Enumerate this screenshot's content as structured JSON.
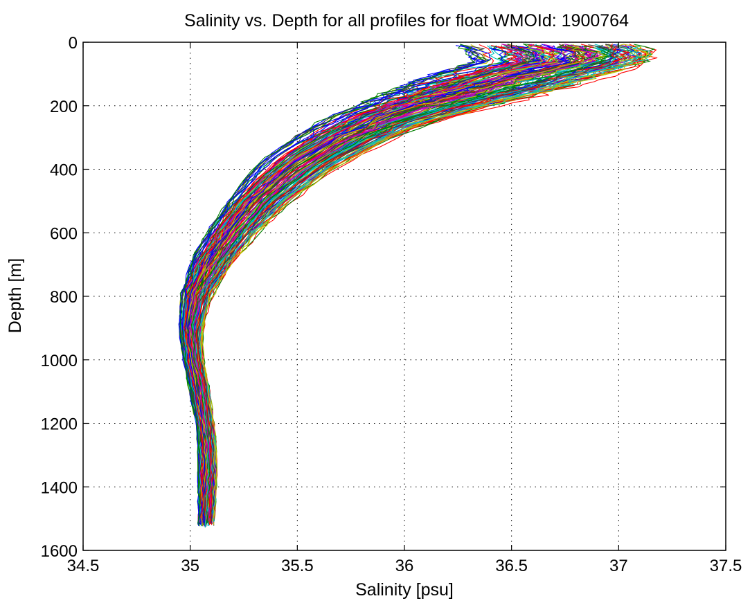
{
  "chart_data": {
    "type": "line",
    "title": "Salinity vs. Depth for all profiles for float WMOId: 1900764",
    "xlabel": "Salinity [psu]",
    "ylabel": "Depth [m]",
    "xlim": [
      34.5,
      37.5
    ],
    "ylim": [
      0,
      1600
    ],
    "y_reversed": true,
    "grid": true,
    "grid_style": "dotted",
    "xticks": [
      "34.5",
      "35",
      "35.5",
      "36",
      "36.5",
      "37",
      "37.5"
    ],
    "yticks": [
      "0",
      "200",
      "400",
      "600",
      "800",
      "1000",
      "1200",
      "1400",
      "1600"
    ],
    "series_colors": [
      "#0000ff",
      "#008000",
      "#ff0000",
      "#00bfbf",
      "#bf00bf",
      "#bfbf00",
      "#404040"
    ],
    "profiles_representative": {
      "depth": [
        5,
        30,
        60,
        100,
        150,
        200,
        250,
        300,
        350,
        400,
        500,
        600,
        700,
        800,
        900,
        1000,
        1100,
        1200,
        1300,
        1400,
        1530
      ],
      "salinity_p10": [
        36.25,
        36.3,
        36.35,
        36.15,
        35.95,
        35.8,
        35.62,
        35.5,
        35.38,
        35.3,
        35.18,
        35.08,
        35.0,
        34.96,
        34.95,
        34.97,
        35.0,
        35.03,
        35.04,
        35.04,
        35.04
      ],
      "salinity_median": [
        36.75,
        36.85,
        36.85,
        36.6,
        36.35,
        36.1,
        35.9,
        35.75,
        35.62,
        35.5,
        35.32,
        35.2,
        35.1,
        35.03,
        35.0,
        35.02,
        35.05,
        35.07,
        35.08,
        35.08,
        35.07
      ],
      "salinity_p90": [
        37.1,
        37.2,
        37.15,
        37.0,
        36.75,
        36.45,
        36.15,
        35.98,
        35.82,
        35.68,
        35.48,
        35.32,
        35.2,
        35.1,
        35.06,
        35.06,
        35.09,
        35.11,
        35.12,
        35.12,
        35.11
      ]
    },
    "profile_count_estimate": 150
  }
}
